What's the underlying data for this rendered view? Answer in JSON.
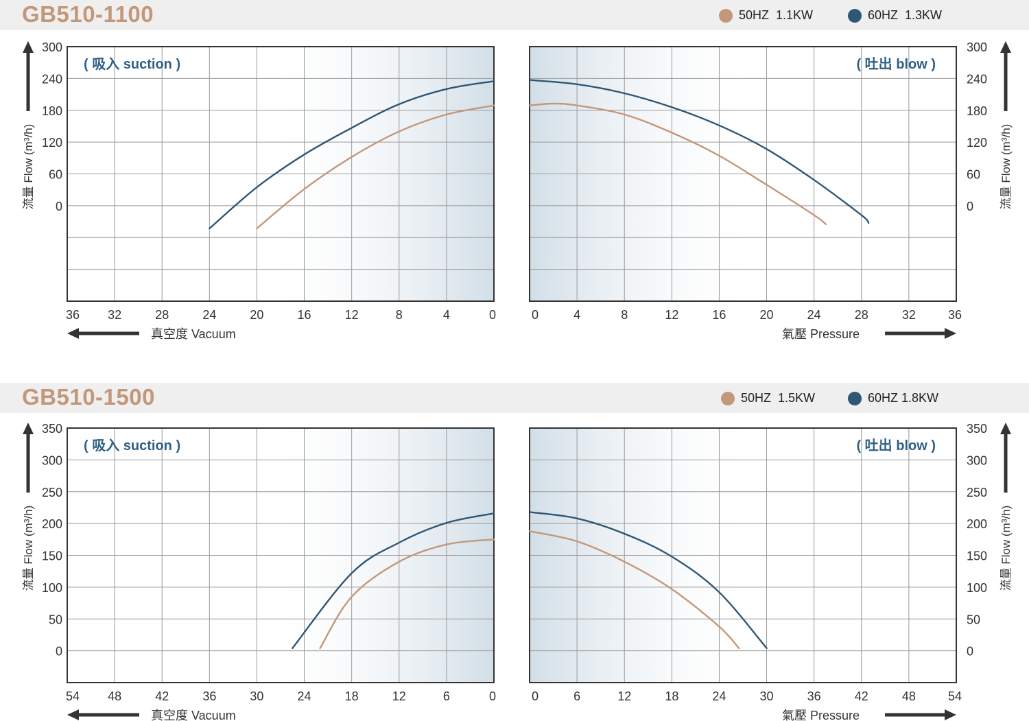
{
  "colors": {
    "hz50": "#c3977a",
    "hz60": "#2e5775",
    "grid": "#999999",
    "axis": "#333333"
  },
  "charts": [
    {
      "model": "GB510-1100",
      "legend": [
        {
          "label": "50HZ  1.1KW",
          "color": "#c3977a"
        },
        {
          "label": "60HZ  1.3KW",
          "color": "#2e5775"
        }
      ],
      "y_label": "流量 Flow (m³/h)",
      "y_ticks": [
        "300",
        "240",
        "180",
        "120",
        "60",
        "0"
      ],
      "suction": {
        "tag": "( 吸入 suction )",
        "x_ticks": [
          "36",
          "32",
          "28",
          "24",
          "20",
          "16",
          "12",
          "8",
          "4",
          "0"
        ],
        "x_label": "真空度  Vacuum"
      },
      "blow": {
        "tag": "( 吐出 blow )",
        "x_ticks": [
          "0",
          "4",
          "8",
          "12",
          "16",
          "20",
          "24",
          "28",
          "32",
          "36"
        ],
        "x_label": "氣壓  Pressure"
      }
    },
    {
      "model": "GB510-1500",
      "legend": [
        {
          "label": "50HZ  1.5KW",
          "color": "#c3977a"
        },
        {
          "label": "60HZ 1.8KW",
          "color": "#2e5775"
        }
      ],
      "y_label": "流量 Flow (m³/h)",
      "y_ticks": [
        "350",
        "300",
        "250",
        "200",
        "150",
        "100",
        "50",
        "0"
      ],
      "suction": {
        "tag": "( 吸入 suction )",
        "x_ticks": [
          "54",
          "48",
          "42",
          "36",
          "30",
          "24",
          "18",
          "12",
          "6",
          "0"
        ],
        "x_label": "真空度  Vacuum"
      },
      "blow": {
        "tag": "( 吐出 blow )",
        "x_ticks": [
          "0",
          "6",
          "12",
          "18",
          "24",
          "30",
          "36",
          "42",
          "48",
          "54"
        ],
        "x_label": "氣壓  Pressure"
      }
    }
  ],
  "chart_data": [
    {
      "type": "line",
      "title": "GB510-1100 ( 吸入 suction )",
      "xlabel": "真空度 Vacuum",
      "ylabel": "流量 Flow (m³/h)",
      "xlim": [
        36,
        0
      ],
      "ylim": [
        -120,
        300
      ],
      "grid": true,
      "series": [
        {
          "name": "50HZ 1.1KW",
          "x": [
            20,
            16,
            12,
            8,
            4,
            0
          ],
          "y": [
            0,
            65,
            118,
            160,
            188,
            203
          ]
        },
        {
          "name": "60HZ 1.3KW",
          "x": [
            24,
            20,
            16,
            12,
            8,
            4,
            0
          ],
          "y": [
            0,
            68,
            122,
            166,
            205,
            230,
            243
          ]
        }
      ]
    },
    {
      "type": "line",
      "title": "GB510-1100 ( 吐出 blow )",
      "xlabel": "氣壓 Pressure",
      "ylabel": "流量 Flow (m³/h)",
      "xlim": [
        0,
        36
      ],
      "ylim": [
        -120,
        300
      ],
      "grid": true,
      "series": [
        {
          "name": "50HZ 1.1KW",
          "x": [
            0,
            2,
            4,
            8,
            12,
            16,
            20,
            24,
            25
          ],
          "y": [
            203,
            206,
            203,
            188,
            158,
            120,
            72,
            22,
            7
          ]
        },
        {
          "name": "60HZ 1.3KW",
          "x": [
            0,
            4,
            8,
            12,
            16,
            20,
            24,
            28,
            28.6
          ],
          "y": [
            245,
            238,
            223,
            200,
            170,
            131,
            80,
            22,
            9
          ]
        }
      ]
    },
    {
      "type": "line",
      "title": "GB510-1500 ( 吸入 suction )",
      "xlabel": "真空度 Vacuum",
      "ylabel": "流量 Flow (m³/h)",
      "xlim": [
        54,
        0
      ],
      "ylim": [
        -50,
        350
      ],
      "grid": true,
      "series": [
        {
          "name": "50HZ 1.5KW",
          "x": [
            22,
            18,
            12,
            6,
            0
          ],
          "y": [
            4,
            85,
            140,
            167,
            175
          ]
        },
        {
          "name": "60HZ 1.8KW",
          "x": [
            25.5,
            18,
            12,
            6,
            0
          ],
          "y": [
            4,
            122,
            170,
            201,
            216
          ]
        }
      ]
    },
    {
      "type": "line",
      "title": "GB510-1500 ( 吐出 blow )",
      "xlabel": "氣壓 Pressure",
      "ylabel": "流量 Flow (m³/h)",
      "xlim": [
        0,
        54
      ],
      "ylim": [
        -50,
        350
      ],
      "grid": true,
      "series": [
        {
          "name": "50HZ 1.5KW",
          "x": [
            0,
            6,
            12,
            18,
            24,
            26.5
          ],
          "y": [
            188,
            172,
            140,
            97,
            38,
            4
          ]
        },
        {
          "name": "60HZ 1.8KW",
          "x": [
            0,
            6,
            12,
            18,
            24,
            30
          ],
          "y": [
            218,
            208,
            184,
            148,
            92,
            4
          ]
        }
      ]
    }
  ]
}
